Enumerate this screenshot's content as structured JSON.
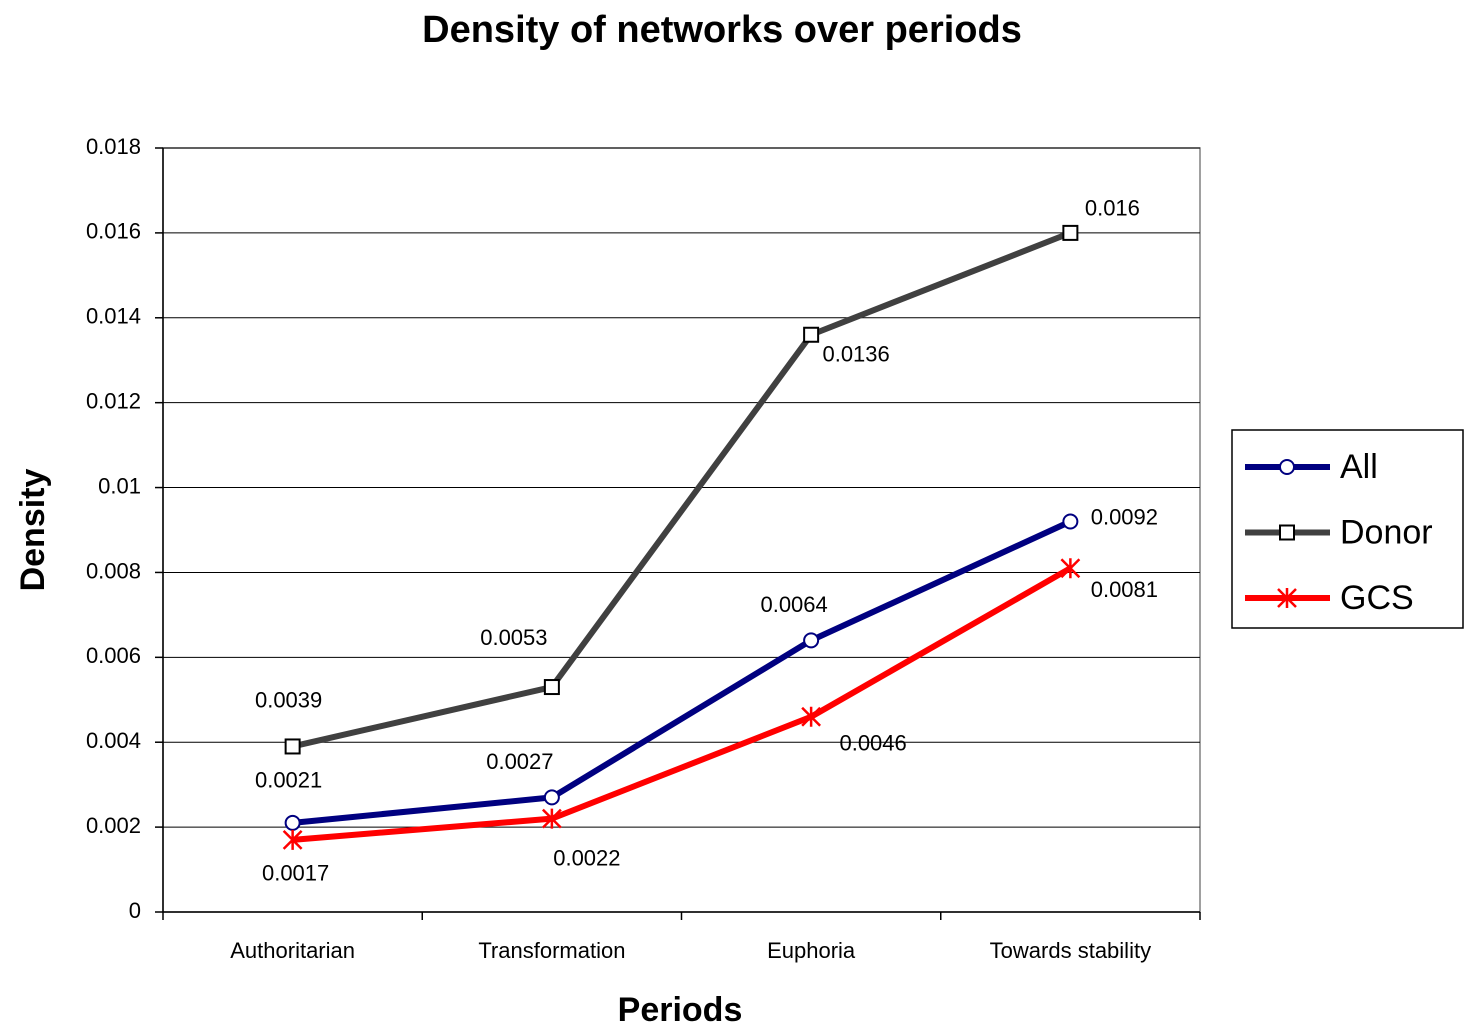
{
  "chart_data": {
    "type": "line",
    "title": "Density of networks over periods",
    "x_label": "Periods",
    "y_label": "Density",
    "categories": [
      "Authoritarian",
      "Transformation",
      "Euphoria",
      "Towards stability"
    ],
    "series": [
      {
        "name": "All",
        "color": "#000080",
        "marker": "circle",
        "values": [
          0.0021,
          0.0027,
          0.0064,
          0.0092
        ]
      },
      {
        "name": "Donor",
        "color": "#404040",
        "marker": "square",
        "values": [
          0.0039,
          0.0053,
          0.0136,
          0.016
        ]
      },
      {
        "name": "GCS",
        "color": "#ff0000",
        "marker": "star",
        "values": [
          0.0017,
          0.0022,
          0.0046,
          0.0081
        ]
      }
    ],
    "ylim": [
      0,
      0.018
    ],
    "yticks": [
      0,
      0.002,
      0.004,
      0.006,
      0.008,
      0.01,
      0.012,
      0.014,
      0.016,
      0.018
    ],
    "grid": true,
    "legend": "right"
  }
}
